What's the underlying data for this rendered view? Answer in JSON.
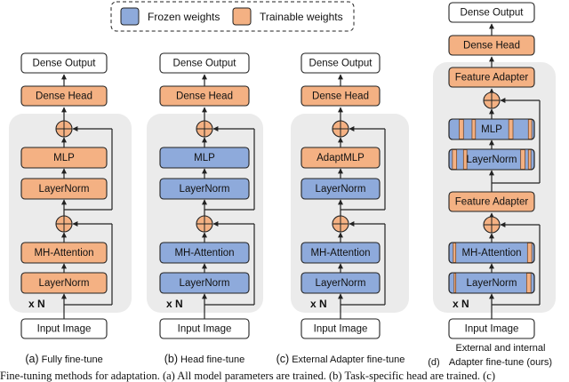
{
  "legend": {
    "frozen_label": "Frozen weights",
    "trainable_label": "Trainable weights"
  },
  "colors": {
    "frozen": "#8eaadb",
    "trainable": "#f4b183",
    "panel": "#ebebeb",
    "stroke": "#222222"
  },
  "repeat_label": "x N",
  "columns": [
    {
      "caption_letter": "(a)",
      "caption": "Fully fine-tune",
      "output": "Dense Output",
      "head": "Dense Head",
      "input": "Input Image",
      "upper_blocks": [
        {
          "label": "MLP",
          "weights": "trainable"
        },
        {
          "label": "LayerNorm",
          "weights": "trainable"
        }
      ],
      "lower_blocks": [
        {
          "label": "MH-Attention",
          "weights": "trainable"
        },
        {
          "label": "LayerNorm",
          "weights": "trainable"
        }
      ]
    },
    {
      "caption_letter": "(b)",
      "caption": "Head fine-tune",
      "output": "Dense Output",
      "head": "Dense Head",
      "input": "Input Image",
      "upper_blocks": [
        {
          "label": "MLP",
          "weights": "frozen"
        },
        {
          "label": "LayerNorm",
          "weights": "frozen"
        }
      ],
      "lower_blocks": [
        {
          "label": "MH-Attention",
          "weights": "frozen"
        },
        {
          "label": "LayerNorm",
          "weights": "frozen"
        }
      ]
    },
    {
      "caption_letter": "(c)",
      "caption": "External Adapter fine-tune",
      "output": "Dense Output",
      "head": "Dense Head",
      "input": "Input Image",
      "upper_blocks": [
        {
          "label": "AdaptMLP",
          "weights": "trainable"
        },
        {
          "label": "LayerNorm",
          "weights": "frozen"
        }
      ],
      "lower_blocks": [
        {
          "label": "MH-Attention",
          "weights": "frozen"
        },
        {
          "label": "LayerNorm",
          "weights": "frozen"
        }
      ]
    },
    {
      "caption_letter": "(d)",
      "caption_line1": "External and internal",
      "caption": "Adapter fine-tune (ours)",
      "output": "Dense Output",
      "head": "Dense Head",
      "input": "Input Image",
      "upper_adapter": "Feature Adapter",
      "lower_adapter": "Feature Adapter",
      "upper_blocks": [
        {
          "label": "MLP",
          "weights": "partial"
        },
        {
          "label": "LayerNorm",
          "weights": "partial"
        }
      ],
      "lower_blocks": [
        {
          "label": "MH-Attention",
          "weights": "partial"
        },
        {
          "label": "LayerNorm",
          "weights": "partial"
        }
      ]
    }
  ],
  "figure_caption": "Fine-tuning methods for adaptation. (a) All model parameters are trained. (b) Task-specific head are trained. (c)"
}
